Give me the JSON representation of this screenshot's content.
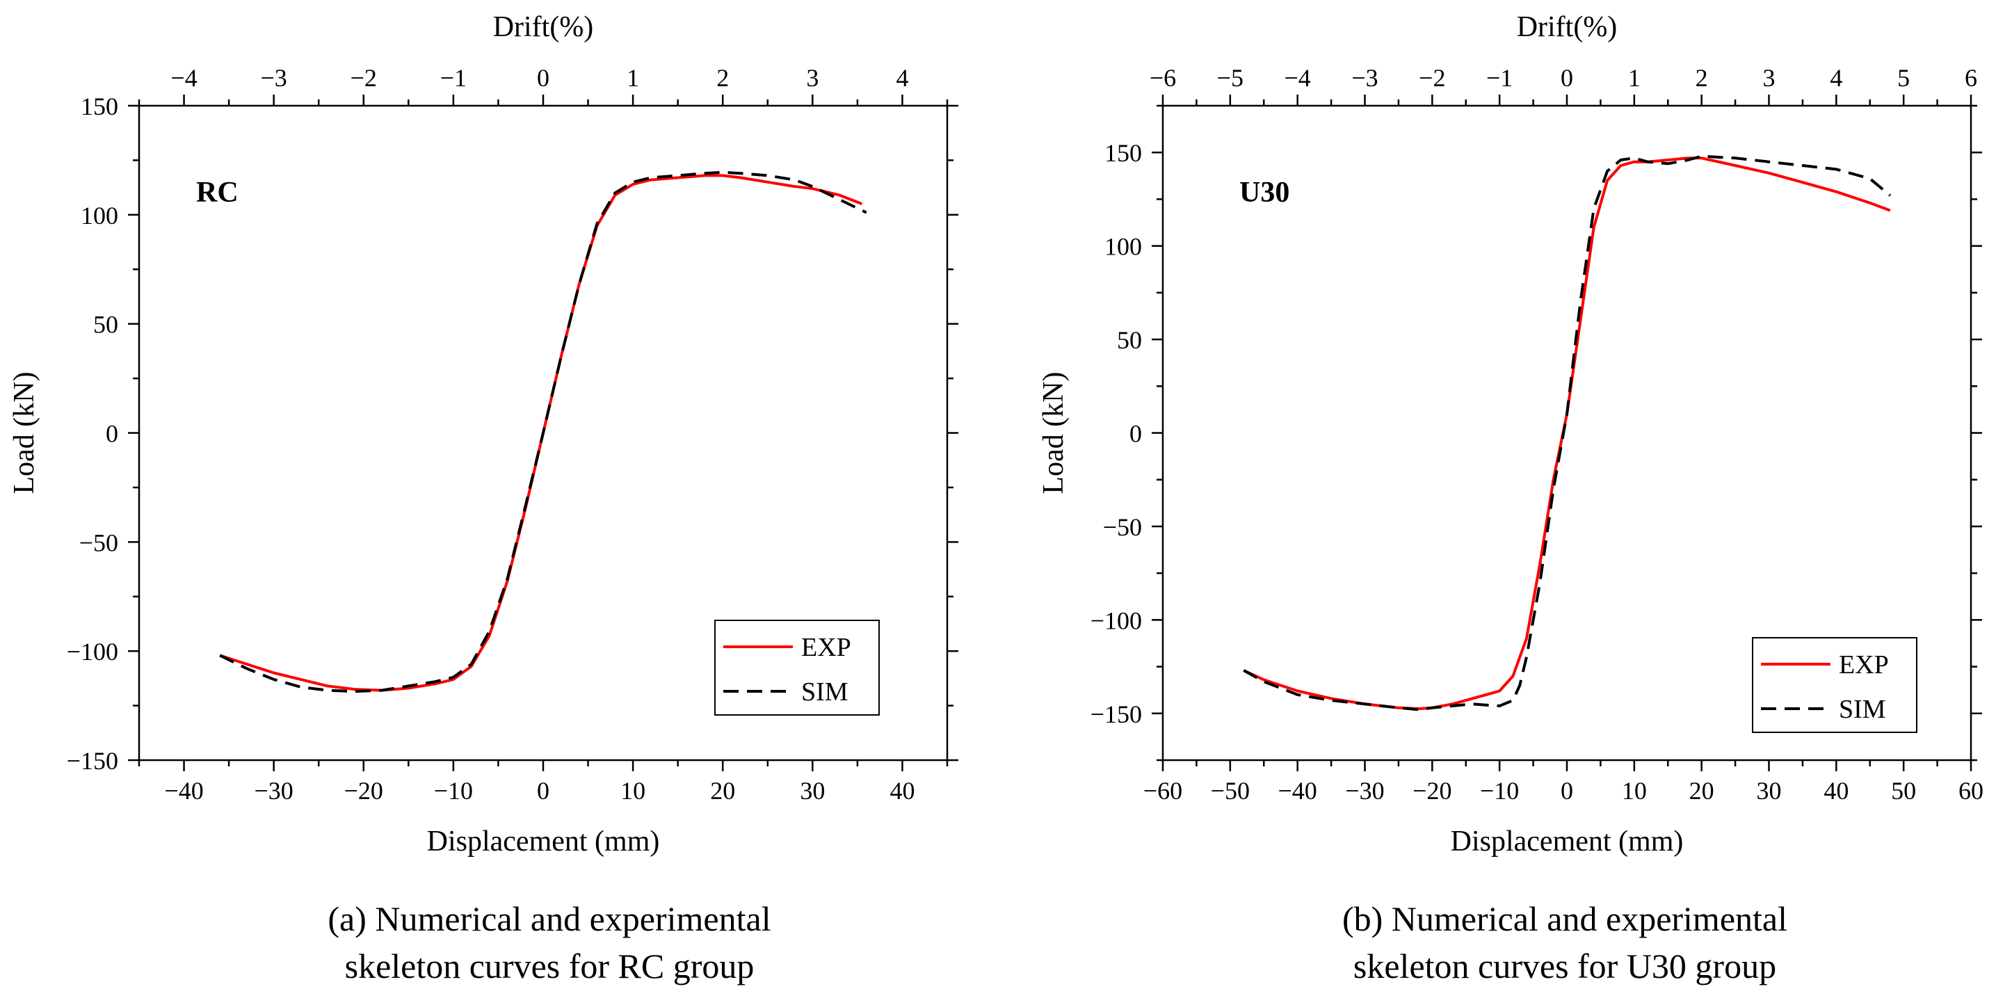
{
  "chart_data": [
    {
      "type": "line",
      "panel": "a",
      "label": "RC",
      "xlabel": "Displacement (mm)",
      "ylabel": "Load (kN)",
      "x2label": "Drift(%)",
      "xlim": [
        -45,
        45
      ],
      "ylim": [
        -150,
        150
      ],
      "x2lim": [
        -4.5,
        4.5
      ],
      "xticks": [
        -40,
        -30,
        -20,
        -10,
        0,
        10,
        20,
        30,
        40
      ],
      "yticks": [
        -150,
        -100,
        -50,
        0,
        50,
        100,
        150
      ],
      "x2ticks": [
        -4,
        -3,
        -2,
        -1,
        0,
        1,
        2,
        3,
        4
      ],
      "legend": {
        "position": "bottom-right",
        "entries": [
          "EXP",
          "SIM"
        ]
      },
      "series": [
        {
          "name": "EXP",
          "color": "#ff0000",
          "dash": "solid",
          "x": [
            -36,
            -33,
            -30,
            -27,
            -24,
            -21,
            -18,
            -15,
            -12,
            -10,
            -8,
            -6,
            -4,
            -2,
            0,
            2,
            4,
            6,
            8,
            10,
            12,
            15,
            18,
            20,
            22,
            25,
            28,
            30,
            33,
            35.5
          ],
          "y": [
            -102,
            -106,
            -110,
            -113,
            -116,
            -117.5,
            -118,
            -117,
            -115,
            -113,
            -107,
            -93,
            -68,
            -35,
            0,
            35,
            68,
            95,
            109,
            114,
            116,
            117,
            118,
            118,
            117,
            115,
            113,
            112,
            109,
            105
          ]
        },
        {
          "name": "SIM",
          "color": "#000000",
          "dash": "dashed",
          "x": [
            -36,
            -33,
            -30,
            -27,
            -24,
            -21,
            -18,
            -15,
            -12,
            -10,
            -8,
            -6,
            -4,
            -2,
            0,
            2,
            4,
            6,
            8,
            10,
            12,
            15,
            18,
            20,
            22,
            25,
            28,
            30,
            33,
            36
          ],
          "y": [
            -102,
            -108,
            -113,
            -116.5,
            -118,
            -118.5,
            -118,
            -116,
            -114,
            -112,
            -106,
            -91,
            -67,
            -34,
            0,
            35,
            68,
            96,
            110,
            115,
            117,
            118,
            119,
            119.5,
            119,
            118,
            116,
            113,
            107,
            101
          ]
        }
      ],
      "caption": [
        "(a) Numerical and experimental",
        "skeleton curves for RC group"
      ]
    },
    {
      "type": "line",
      "panel": "b",
      "label": "U30",
      "xlabel": "Displacement (mm)",
      "ylabel": "Load (kN)",
      "x2label": "Drift(%)",
      "xlim": [
        -60,
        60
      ],
      "ylim": [
        -175,
        175
      ],
      "x2lim": [
        -6,
        6
      ],
      "xticks": [
        -60,
        -50,
        -40,
        -30,
        -20,
        -10,
        0,
        10,
        20,
        30,
        40,
        50,
        60
      ],
      "yticks": [
        -150,
        -100,
        -50,
        0,
        50,
        100,
        150
      ],
      "x2ticks": [
        -6,
        -5,
        -4,
        -3,
        -2,
        -1,
        0,
        1,
        2,
        3,
        4,
        5,
        6
      ],
      "legend": {
        "position": "bottom-right",
        "entries": [
          "EXP",
          "SIM"
        ]
      },
      "series": [
        {
          "name": "EXP",
          "color": "#ff0000",
          "dash": "solid",
          "x": [
            -48,
            -45,
            -40,
            -35,
            -30,
            -25,
            -22,
            -20,
            -17,
            -14,
            -12,
            -10,
            -8,
            -6,
            -4,
            -2,
            0,
            2,
            4,
            6,
            8,
            10,
            12,
            15,
            18,
            20,
            25,
            30,
            35,
            40,
            45,
            48
          ],
          "y": [
            -127,
            -132,
            -138,
            -142,
            -145,
            -147,
            -147.5,
            -147,
            -145,
            -142,
            -140,
            -138,
            -130,
            -110,
            -70,
            -25,
            10,
            60,
            110,
            135,
            143,
            145,
            145,
            146,
            147,
            147,
            143,
            139,
            134,
            129,
            123,
            119
          ]
        },
        {
          "name": "SIM",
          "color": "#000000",
          "dash": "dashed",
          "x": [
            -48,
            -45,
            -40,
            -35,
            -30,
            -25,
            -22,
            -20,
            -17,
            -14,
            -12,
            -10,
            -8,
            -7,
            -6,
            -4,
            -2,
            0,
            2,
            4,
            6,
            8,
            10,
            12,
            15,
            18,
            20,
            25,
            30,
            35,
            40,
            45,
            48
          ],
          "y": [
            -127,
            -133,
            -140,
            -143,
            -145,
            -147,
            -148,
            -147,
            -146,
            -145,
            -145.5,
            -146,
            -143,
            -135,
            -120,
            -80,
            -30,
            10,
            70,
            120,
            140,
            146,
            147,
            145,
            144,
            146,
            148,
            147,
            145,
            143,
            141,
            136,
            127
          ]
        }
      ],
      "caption": [
        "(b) Numerical and experimental",
        "skeleton curves for U30 group"
      ]
    }
  ]
}
